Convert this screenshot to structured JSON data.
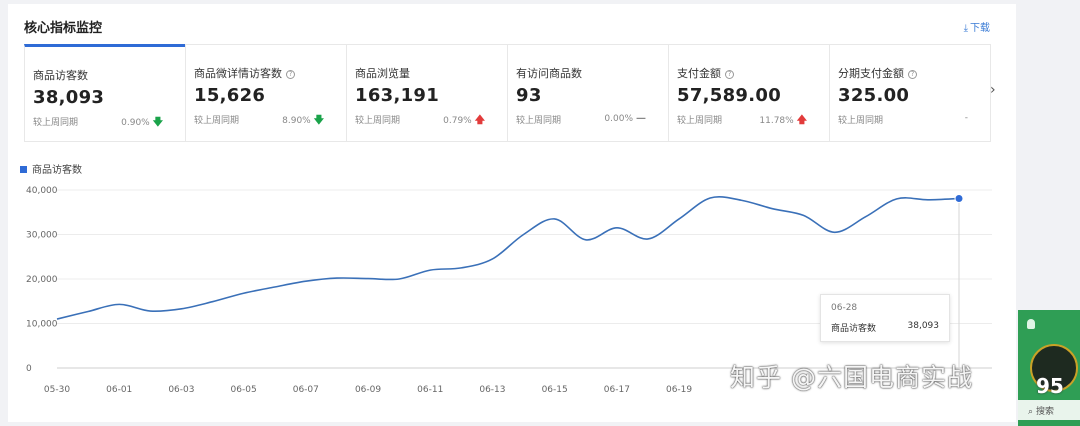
{
  "panel": {
    "title": "核心指标监控",
    "download_label": "下载"
  },
  "metrics": [
    {
      "label": "商品访客数",
      "value": "38,093",
      "compare_label": "较上周同期",
      "change": "0.90%",
      "direction": "down",
      "help": false
    },
    {
      "label": "商品微详情访客数",
      "value": "15,626",
      "compare_label": "较上周同期",
      "change": "8.90%",
      "direction": "down",
      "help": true
    },
    {
      "label": "商品浏览量",
      "value": "163,191",
      "compare_label": "较上周同期",
      "change": "0.79%",
      "direction": "up",
      "help": false
    },
    {
      "label": "有访问商品数",
      "value": "93",
      "compare_label": "较上周同期",
      "change": "0.00%",
      "direction": "flat",
      "help": false
    },
    {
      "label": "支付金额",
      "value": "57,589.00",
      "compare_label": "较上周同期",
      "change": "11.78%",
      "direction": "up",
      "help": true
    },
    {
      "label": "分期支付金额",
      "value": "325.00",
      "compare_label": "较上周同期",
      "change": "-",
      "direction": "none",
      "help": true
    }
  ],
  "colors": {
    "accent": "#2f6bd6",
    "line": "#3a70b8",
    "down": "#1aa34a",
    "up": "#e23b3b"
  },
  "chart_data": {
    "type": "line",
    "legend": "商品访客数",
    "x": [
      "05-30",
      "05-31",
      "06-01",
      "06-02",
      "06-03",
      "06-04",
      "06-05",
      "06-06",
      "06-07",
      "06-08",
      "06-09",
      "06-10",
      "06-11",
      "06-12",
      "06-13",
      "06-14",
      "06-15",
      "06-16",
      "06-17",
      "06-18",
      "06-19",
      "06-20",
      "06-21",
      "06-22",
      "06-23",
      "06-24",
      "06-25",
      "06-26",
      "06-27",
      "06-28"
    ],
    "x_tick_labels": [
      "05-30",
      "06-01",
      "06-03",
      "06-05",
      "06-07",
      "06-09",
      "06-11",
      "06-13",
      "06-15",
      "06-17",
      "06-19"
    ],
    "series": [
      {
        "name": "商品访客数",
        "values": [
          11000,
          12700,
          14300,
          12800,
          13300,
          14900,
          16800,
          18200,
          19500,
          20200,
          20100,
          20000,
          22000,
          22500,
          24500,
          30000,
          33500,
          28800,
          31500,
          29000,
          33500,
          38200,
          37700,
          35800,
          34300,
          30500,
          34000,
          38000,
          37800,
          38093
        ]
      }
    ],
    "ylim": [
      0,
      40000
    ],
    "y_ticks": [
      "0",
      "10,000",
      "20,000",
      "30,000",
      "40,000"
    ],
    "grid": true
  },
  "tooltip": {
    "date": "06-28",
    "label": "商品访客数",
    "value": "38,093"
  },
  "watermark": {
    "text": "知乎 @六国电商实战",
    "number": "95"
  },
  "side_widget": {
    "search_label": "搜索"
  }
}
